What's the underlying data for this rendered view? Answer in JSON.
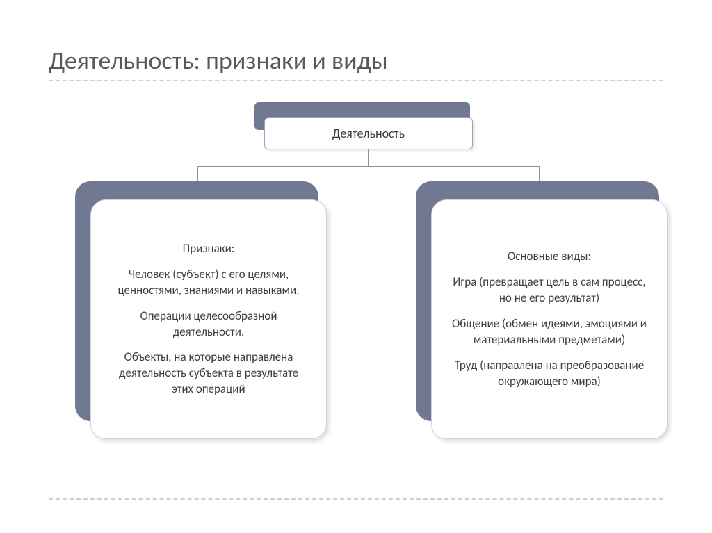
{
  "title": "Деятельность: признаки и виды",
  "diagram": {
    "type": "tree",
    "background_color": "#ffffff",
    "shadow_color": "#707991",
    "box_bg": "#ffffff",
    "box_border": "#9ba2b4",
    "connector_color": "#8a92a7",
    "divider_color": "#c9cfdc",
    "title_color": "#595959",
    "text_color": "#404040",
    "title_fontsize": 36,
    "node_fontsize": 18,
    "child_fontsize": 17,
    "border_radius_root": 6,
    "border_radius_child": 22,
    "root": {
      "label": "Деятельность"
    },
    "children": [
      {
        "lines": [
          "Признаки:",
          "Человек (субъект) с его целями, ценностями, знаниями и навыками.",
          "Операции целесообразной деятельности.",
          "Объекты, на которые направлена деятельность субъекта в результате этих операций"
        ]
      },
      {
        "lines": [
          "Основные виды:",
          "Игра (превращает цель в сам процесс, но не его результат)",
          "Общение (обмен идеями, эмоциями и материальными предметами)",
          "Труд (направлена на преобразование окружающего мира)"
        ]
      }
    ]
  }
}
